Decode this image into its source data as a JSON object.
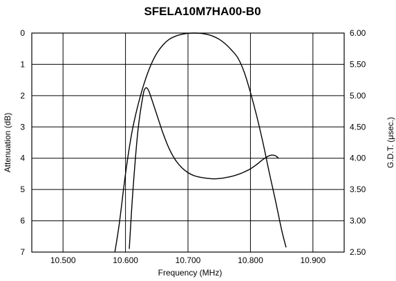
{
  "chart_data": {
    "type": "line",
    "title": "SFELA10M7HA00-B0",
    "xlabel": "Frequency (MHz)",
    "ylabel": "Attenuation (dB)",
    "y2label": "G.D.T. (μsec.)",
    "x_tick_labels": [
      "10.500",
      "10.600",
      "10.700",
      "10.800",
      "10.900"
    ],
    "x_ticks": [
      10.5,
      10.6,
      10.7,
      10.8,
      10.9
    ],
    "xlim": [
      10.45,
      10.95
    ],
    "y_tick_labels": [
      "0",
      "1",
      "2",
      "3",
      "4",
      "5",
      "6",
      "7"
    ],
    "y_ticks": [
      0,
      1,
      2,
      3,
      4,
      5,
      6,
      7
    ],
    "ylim": [
      0,
      7
    ],
    "y_inverted": true,
    "y2_tick_labels": [
      "6.00",
      "5.50",
      "5.00",
      "4.50",
      "4.00",
      "3.50",
      "3.00",
      "2.50"
    ],
    "y2_ticks": [
      6.0,
      5.5,
      5.0,
      4.5,
      4.0,
      3.5,
      3.0,
      2.5
    ],
    "y2lim": [
      2.5,
      6.0
    ],
    "grid": true,
    "series": [
      {
        "axis": "left",
        "x": [
          10.583,
          10.59,
          10.6,
          10.61,
          10.62,
          10.63,
          10.64,
          10.65,
          10.66,
          10.67,
          10.68,
          10.69,
          10.7,
          10.71,
          10.72,
          10.73,
          10.74,
          10.75,
          10.76,
          10.77,
          10.78,
          10.79,
          10.8,
          10.81,
          10.82,
          10.83,
          10.84,
          10.85,
          10.857
        ],
        "values": [
          7.0,
          6.1,
          4.5,
          3.2,
          2.3,
          1.6,
          1.05,
          0.65,
          0.38,
          0.2,
          0.1,
          0.04,
          0.01,
          0.0,
          0.01,
          0.04,
          0.1,
          0.2,
          0.35,
          0.55,
          0.8,
          1.25,
          1.9,
          2.65,
          3.5,
          4.45,
          5.35,
          6.3,
          6.85
        ]
      },
      {
        "axis": "right",
        "x": [
          10.606,
          10.612,
          10.62,
          10.628,
          10.632,
          10.636,
          10.64,
          10.65,
          10.66,
          10.67,
          10.68,
          10.69,
          10.7,
          10.71,
          10.72,
          10.73,
          10.74,
          10.75,
          10.76,
          10.77,
          10.78,
          10.79,
          10.8,
          10.81,
          10.82,
          10.83,
          10.835,
          10.84,
          10.845
        ],
        "values": [
          2.55,
          3.5,
          4.45,
          5.0,
          5.12,
          5.1,
          5.0,
          4.7,
          4.4,
          4.15,
          3.97,
          3.85,
          3.77,
          3.72,
          3.695,
          3.68,
          3.67,
          3.675,
          3.69,
          3.71,
          3.74,
          3.78,
          3.83,
          3.9,
          3.98,
          4.04,
          4.05,
          4.04,
          4.0
        ]
      }
    ]
  },
  "colors": {
    "line": "#000000",
    "grid": "#000000",
    "background": "#ffffff"
  }
}
